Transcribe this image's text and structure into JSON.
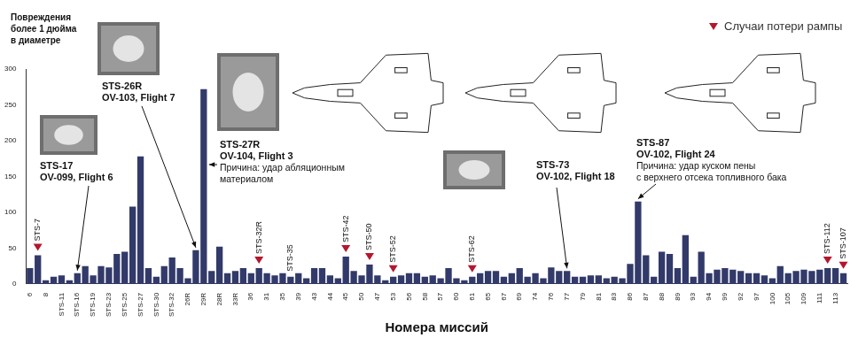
{
  "chart_data": {
    "type": "bar",
    "y_label": [
      "Повреждения",
      "более 1 дюйма",
      "в диаметре"
    ],
    "x_label": "Номера миссий",
    "categories": [
      "6",
      null,
      "8",
      null,
      "STS-11",
      null,
      "STS-16",
      null,
      "STS-19",
      null,
      "STS-23",
      null,
      "STS-25",
      null,
      "STS-27",
      null,
      "STS-30",
      null,
      "STS-32",
      null,
      "26R",
      null,
      "29R",
      null,
      "28R",
      null,
      "33R",
      null,
      "36",
      null,
      "31",
      null,
      "35",
      null,
      "39",
      null,
      "43",
      null,
      "44",
      null,
      "45",
      null,
      "50",
      null,
      "47",
      null,
      "53",
      null,
      "56",
      null,
      "58",
      null,
      "57",
      null,
      "60",
      null,
      "61",
      null,
      "65",
      null,
      "67",
      null,
      "69",
      null,
      "74",
      null,
      "76",
      null,
      "77",
      null,
      "79",
      null,
      "81",
      null,
      "83",
      null,
      "86",
      null,
      "87",
      null,
      "88",
      null,
      "89",
      null,
      "93",
      null,
      "94",
      null,
      "99",
      null,
      "92",
      null,
      "97",
      null,
      "100",
      null,
      "105",
      null,
      "109",
      null,
      "111",
      null,
      "113",
      null
    ],
    "values": [
      22,
      40,
      5,
      10,
      12,
      5,
      15,
      25,
      12,
      25,
      23,
      42,
      45,
      108,
      178,
      22,
      10,
      25,
      37,
      22,
      8,
      47,
      272,
      18,
      52,
      15,
      18,
      22,
      15,
      22,
      15,
      12,
      15,
      10,
      15,
      8,
      22,
      22,
      12,
      8,
      38,
      18,
      12,
      27,
      12,
      5,
      10,
      12,
      15,
      15,
      10,
      12,
      8,
      22,
      8,
      5,
      10,
      15,
      18,
      18,
      10,
      15,
      22,
      10,
      15,
      8,
      23,
      18,
      18,
      10,
      10,
      12,
      12,
      8,
      10,
      8,
      28,
      115,
      40,
      10,
      45,
      42,
      22,
      68,
      10,
      45,
      15,
      20,
      22,
      20,
      18,
      15,
      15,
      12,
      8,
      25,
      15,
      18,
      20,
      18,
      20,
      22,
      22,
      15
    ],
    "color": "#323a6a",
    "ylim": [
      0,
      300
    ],
    "yticks": [
      0,
      50,
      100,
      150,
      200,
      250,
      300
    ],
    "grid": false,
    "ramp_loss": {
      "name": "Случаи потери рампы",
      "color": "#b3172e",
      "marker": "triangle",
      "points": [
        {
          "bar": 1,
          "label": "STS-7"
        },
        {
          "bar": 29,
          "label": "STS-32R"
        },
        {
          "bar": 40,
          "label": "STS-42"
        },
        {
          "bar": 43,
          "label": "STS-50"
        },
        {
          "bar": 46,
          "label": "STS-52"
        },
        {
          "bar": 56,
          "label": "STS-62"
        },
        {
          "bar": 101,
          "label": "STS-112"
        },
        {
          "bar": 103,
          "label": "STS-107"
        }
      ]
    },
    "mission_labels": [
      {
        "bar": 33,
        "label": "STS-35"
      }
    ],
    "annotations": [
      {
        "bar": 6,
        "lines": [
          "STS-17",
          "OV-099, Flight 6"
        ]
      },
      {
        "bar": 21,
        "lines": [
          "STS-26R",
          "OV-103, Flight 7"
        ]
      },
      {
        "bar": 22,
        "lines": [
          "STS-27R",
          "OV-104, Flight 3",
          "Причина: удар абляционным",
          "материалом"
        ]
      },
      {
        "bar": 68,
        "lines": [
          "STS-73",
          "OV-102, Flight 18"
        ]
      },
      {
        "bar": 77,
        "lines": [
          "STS-87",
          "OV-102, Flight 24",
          "Причина: удар куском пены",
          "с верхнего отсека топливного бака"
        ]
      }
    ]
  }
}
